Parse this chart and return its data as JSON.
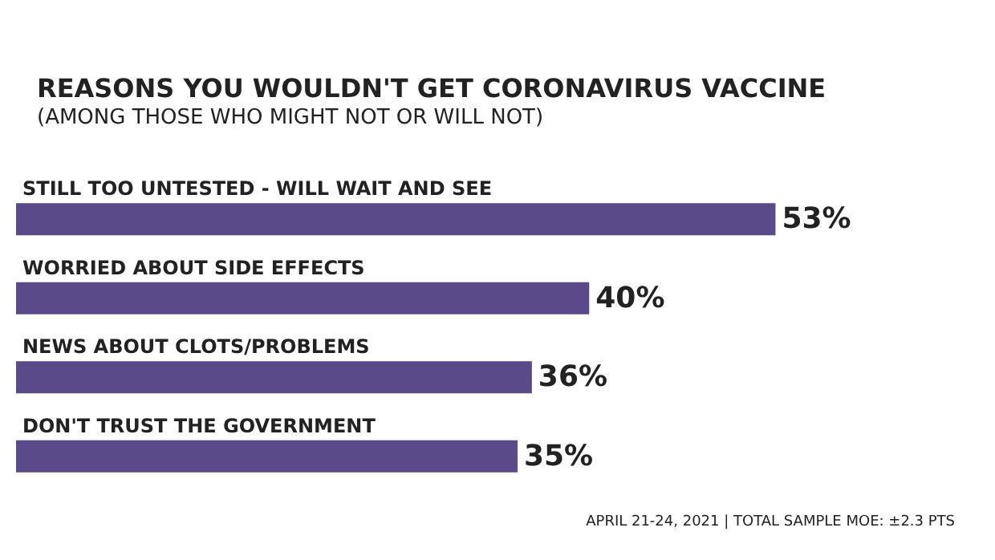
{
  "chart_data": {
    "type": "bar",
    "orientation": "horizontal",
    "title": "REASONS YOU WOULDN'T GET CORONAVIRUS VACCINE",
    "subtitle": "(AMONG THOSE WHO MIGHT NOT OR WILL NOT)",
    "categories": [
      "STILL TOO UNTESTED - WILL WAIT AND SEE",
      "WORRIED ABOUT SIDE EFFECTS",
      "NEWS ABOUT CLOTS/PROBLEMS",
      "DON'T TRUST THE GOVERNMENT"
    ],
    "values": [
      53,
      40,
      36,
      35
    ],
    "value_labels": [
      "53%",
      "40%",
      "36%",
      "35%"
    ],
    "color": "#5a4a8a",
    "tick_labels": false,
    "annotations": [
      "APRIL 21-24, 2021 | TOTAL SAMPLE MOE: ±2.3 PTS"
    ]
  }
}
